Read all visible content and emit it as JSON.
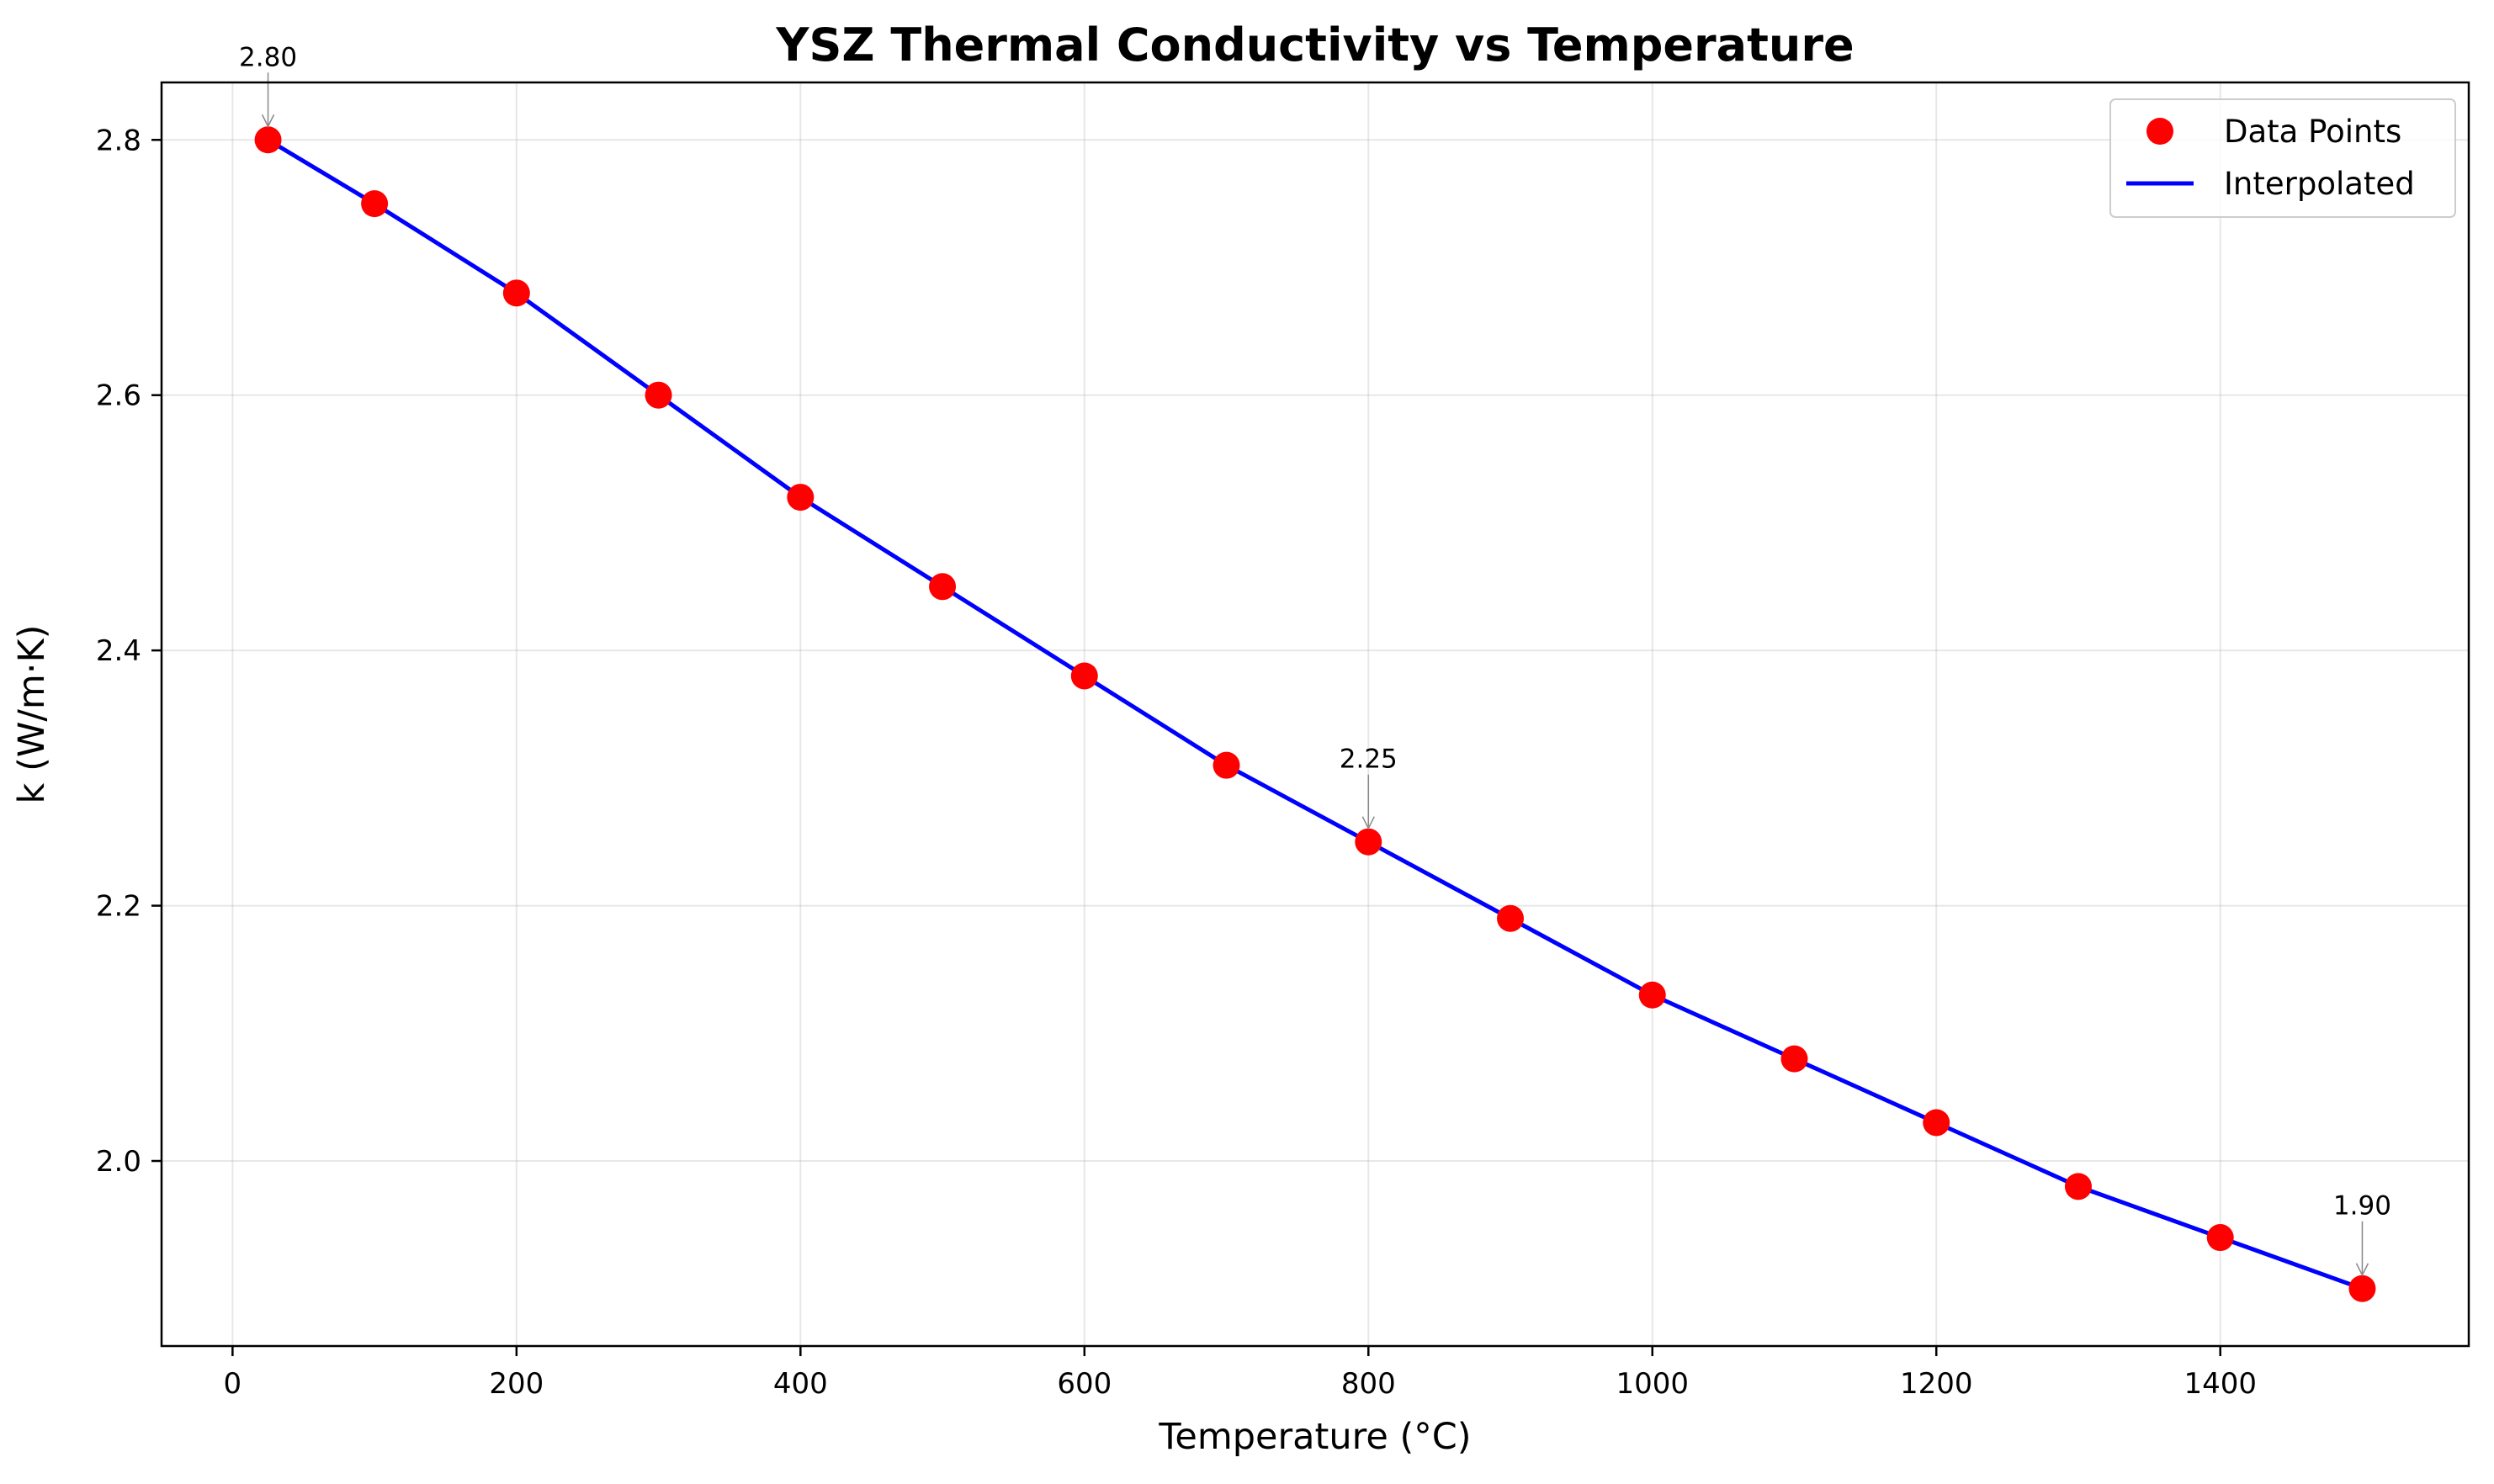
{
  "chart_data": {
    "type": "line",
    "title": "YSZ Thermal Conductivity vs Temperature",
    "xlabel": "Temperature (°C)",
    "ylabel": "k (W/m·K)",
    "xlim": [
      -50,
      1575
    ],
    "ylim": [
      1.855,
      2.845
    ],
    "xticks": [
      0,
      200,
      400,
      600,
      800,
      1000,
      1200,
      1400
    ],
    "yticks": [
      2.0,
      2.2,
      2.4,
      2.6,
      2.8
    ],
    "xtick_labels": [
      "0",
      "200",
      "400",
      "600",
      "800",
      "1000",
      "1200",
      "1400"
    ],
    "ytick_labels": [
      "2.0",
      "2.2",
      "2.4",
      "2.6",
      "2.8"
    ],
    "grid": true,
    "legend_position": "top-right",
    "series": [
      {
        "name": "Data Points",
        "type": "scatter",
        "color": "#ff0000",
        "x": [
          25,
          100,
          200,
          300,
          400,
          500,
          600,
          700,
          800,
          900,
          1000,
          1100,
          1200,
          1300,
          1400,
          1500
        ],
        "y": [
          2.8,
          2.75,
          2.68,
          2.6,
          2.52,
          2.45,
          2.38,
          2.31,
          2.25,
          2.19,
          2.13,
          2.08,
          2.03,
          1.98,
          1.94,
          1.9
        ]
      },
      {
        "name": "Interpolated",
        "type": "line",
        "color": "#0000ff",
        "x": [
          25,
          100,
          200,
          300,
          400,
          500,
          600,
          700,
          800,
          900,
          1000,
          1100,
          1200,
          1300,
          1400,
          1500
        ],
        "y": [
          2.8,
          2.75,
          2.68,
          2.6,
          2.52,
          2.45,
          2.38,
          2.31,
          2.25,
          2.19,
          2.13,
          2.08,
          2.03,
          1.98,
          1.94,
          1.9
        ]
      }
    ],
    "annotations": [
      {
        "text": "2.80",
        "x": 25,
        "y": 2.8
      },
      {
        "text": "2.25",
        "x": 800,
        "y": 2.25
      },
      {
        "text": "1.90",
        "x": 1500,
        "y": 1.9
      }
    ]
  }
}
